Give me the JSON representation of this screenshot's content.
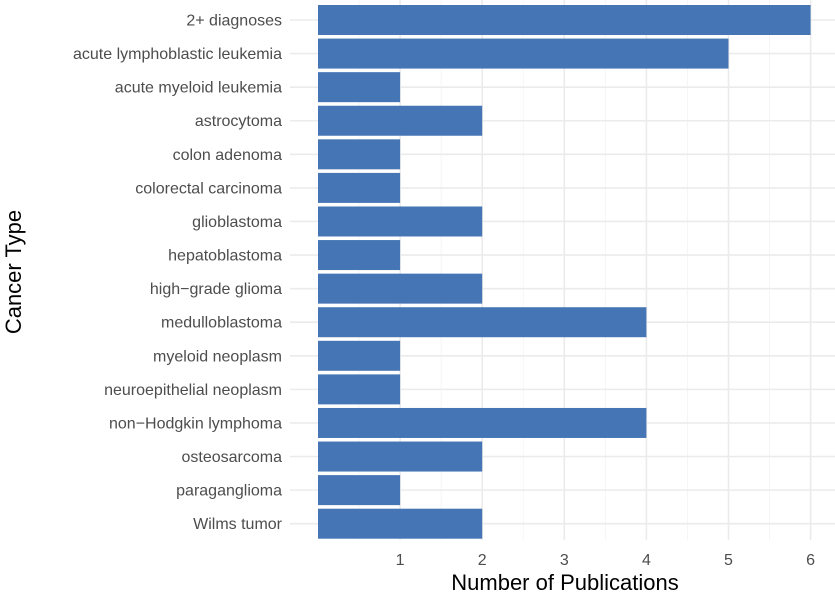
{
  "chart_data": {
    "type": "bar",
    "orientation": "horizontal",
    "title": "",
    "xlabel": "Number of Publications",
    "ylabel": "Cancer Type",
    "xlim": [
      0,
      6.2
    ],
    "xticks": [
      1,
      2,
      3,
      4,
      5,
      6
    ],
    "grid": true,
    "bar_color": "#4575b4",
    "categories": [
      "2+ diagnoses",
      "acute lymphoblastic leukemia",
      "acute myeloid leukemia",
      "astrocytoma",
      "colon adenoma",
      "colorectal carcinoma",
      "glioblastoma",
      "hepatoblastoma",
      "high−grade glioma",
      "medulloblastoma",
      "myeloid neoplasm",
      "neuroepithelial neoplasm",
      "non−Hodgkin lymphoma",
      "osteosarcoma",
      "paraganglioma",
      "Wilms tumor"
    ],
    "values": [
      6,
      5,
      1,
      2,
      1,
      1,
      2,
      1,
      2,
      4,
      1,
      1,
      4,
      2,
      1,
      2
    ]
  }
}
